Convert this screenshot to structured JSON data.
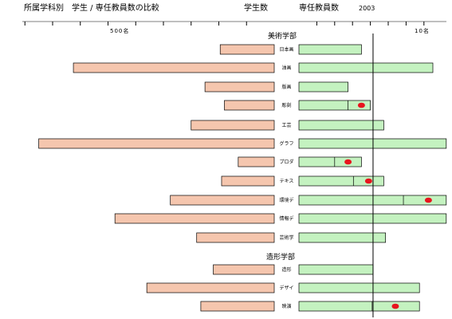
{
  "header": {
    "title": "所属学科別　学生 / 専任教員数の比較",
    "legend_students": "学生数",
    "legend_faculty": "専任教員数",
    "year": "2003"
  },
  "scale": {
    "students_tick_label": "500名",
    "faculty_tick_label": "10名"
  },
  "sections": [
    {
      "label": "美術学部"
    },
    {
      "label": "造形学部"
    }
  ],
  "colors": {
    "student_bar": "#f5c6ae",
    "faculty_bar": "#c4f2c0",
    "bar_border": "#000000",
    "marker": "#e8141e"
  },
  "chart_data": {
    "type": "bar",
    "title": "所属学科別　学生 / 専任教員数の比較",
    "orientation": "horizontal-back-to-back",
    "series": [
      {
        "name": "学生数",
        "direction": "left",
        "unit": "名"
      },
      {
        "name": "専任教員数",
        "direction": "right",
        "unit": "名"
      }
    ],
    "categories": [
      "日本画",
      "油画",
      "版画",
      "彫刻",
      "工芸",
      "グラフ",
      "プロダ",
      "テキス",
      "環境デ",
      "情報デ",
      "芸術学",
      "造形",
      "デザイ",
      "映演"
    ],
    "groups": [
      {
        "label": "美術学部",
        "categories": [
          "日本画",
          "油画",
          "版画",
          "彫刻",
          "工芸",
          "グラフ",
          "プロダ",
          "テキス",
          "環境デ",
          "情報デ",
          "芸術学"
        ]
      },
      {
        "label": "造形学部",
        "categories": [
          "造形",
          "デザイ",
          "映演"
        ]
      }
    ],
    "students": [
      195,
      725,
      250,
      180,
      300,
      850,
      130,
      190,
      375,
      575,
      280,
      220,
      460,
      265
    ],
    "faculty": [
      7,
      15,
      5.5,
      8,
      9.5,
      16.5,
      7,
      9.5,
      16.5,
      16.5,
      9.7,
      8.3,
      13.5,
      13.5
    ],
    "faculty_segment_split": [
      null,
      null,
      null,
      5.5,
      null,
      null,
      4,
      6.1,
      11.7,
      null,
      null,
      null,
      null,
      8.2
    ],
    "faculty_marker": [
      null,
      null,
      null,
      7,
      null,
      null,
      5.5,
      7.8,
      14.5,
      null,
      null,
      null,
      null,
      10.8
    ],
    "reference_line": 8.3,
    "students_axis": {
      "tick_step": 100,
      "ticks": 9,
      "labeled_tick": "500名"
    },
    "faculty_axis": {
      "tick_step": 2,
      "ticks": 7,
      "labeled_tick": "10名"
    }
  }
}
